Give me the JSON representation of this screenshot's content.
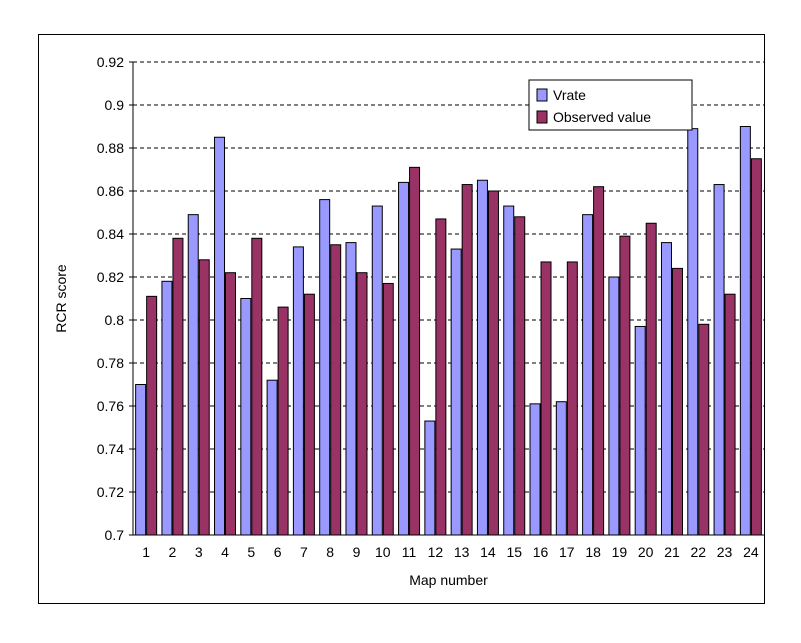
{
  "chart_data": {
    "type": "bar",
    "xlabel": "Map number",
    "ylabel": "RCR score",
    "ylim": [
      0.7,
      0.92
    ],
    "yticks": [
      0.7,
      0.72,
      0.74,
      0.76,
      0.78,
      0.8,
      0.82,
      0.84,
      0.86,
      0.88,
      0.9,
      0.92
    ],
    "ytick_labels": [
      "0.7",
      "0.72",
      "0.74",
      "0.76",
      "0.78",
      "0.8",
      "0.82",
      "0.84",
      "0.86",
      "0.88",
      "0.9",
      "0.92"
    ],
    "grid": "horizontal dashed",
    "legend_position": "top-right",
    "categories": [
      "1",
      "2",
      "3",
      "4",
      "5",
      "6",
      "7",
      "8",
      "9",
      "10",
      "11",
      "12",
      "13",
      "14",
      "15",
      "16",
      "17",
      "18",
      "19",
      "20",
      "21",
      "22",
      "23",
      "24"
    ],
    "series": [
      {
        "name": "Vrate",
        "color": "#9999ff",
        "values": [
          0.77,
          0.818,
          0.849,
          0.885,
          0.81,
          0.772,
          0.834,
          0.856,
          0.836,
          0.853,
          0.864,
          0.753,
          0.833,
          0.865,
          0.853,
          0.761,
          0.762,
          0.849,
          0.82,
          0.797,
          0.836,
          0.889,
          0.863,
          0.89
        ]
      },
      {
        "name": "Observed value",
        "color": "#993366",
        "values": [
          0.811,
          0.838,
          0.828,
          0.822,
          0.838,
          0.806,
          0.812,
          0.835,
          0.822,
          0.817,
          0.871,
          0.847,
          0.863,
          0.86,
          0.848,
          0.827,
          0.827,
          0.862,
          0.839,
          0.845,
          0.824,
          0.798,
          0.812,
          0.875
        ]
      }
    ]
  }
}
